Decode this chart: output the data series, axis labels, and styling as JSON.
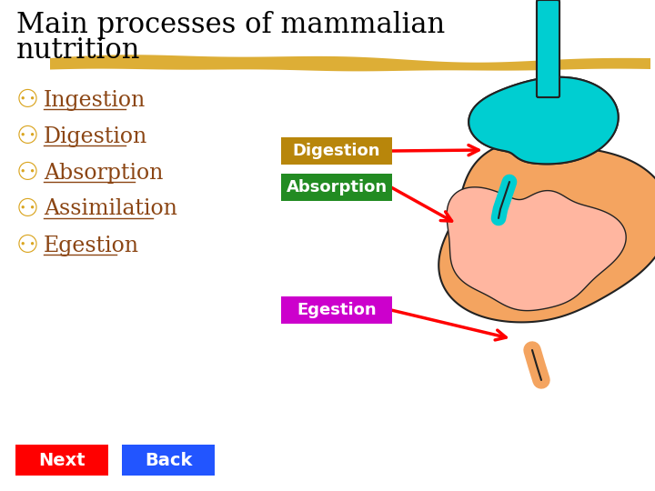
{
  "title_line1": "Main processes of mammalian",
  "title_line2": "nutrition",
  "title_color": "#000000",
  "title_fontsize": 22,
  "bg_color": "#ffffff",
  "bullet_symbol": "⚇",
  "bullet_color": "#DAA520",
  "bullet_items": [
    "Ingestion",
    "Digestion",
    "Absorption",
    "Assimilation",
    "Egestion"
  ],
  "bullet_text_color": "#8B4513",
  "bullet_fontsize": 17,
  "divider_color": "#DAA520",
  "label_digestion": "Digestion",
  "label_digestion_bg": "#B8860B",
  "label_absorption": "Absorption",
  "label_absorption_bg": "#228B22",
  "label_egestion": "Egestion",
  "label_egestion_bg": "#CC00CC",
  "label_text_color": "#ffffff",
  "label_fontsize": 13,
  "arrow_color": "#FF0000",
  "next_btn_color": "#FF0000",
  "back_btn_color": "#2255FF",
  "btn_text_color": "#ffffff",
  "btn_fontsize": 14,
  "next_label": "Next",
  "back_label": "Back",
  "stomach_color": "#00CED1",
  "outer_intestine_color": "#F4A460",
  "inner_intestine_color": "#FFB6A0",
  "outline_color": "#222222"
}
